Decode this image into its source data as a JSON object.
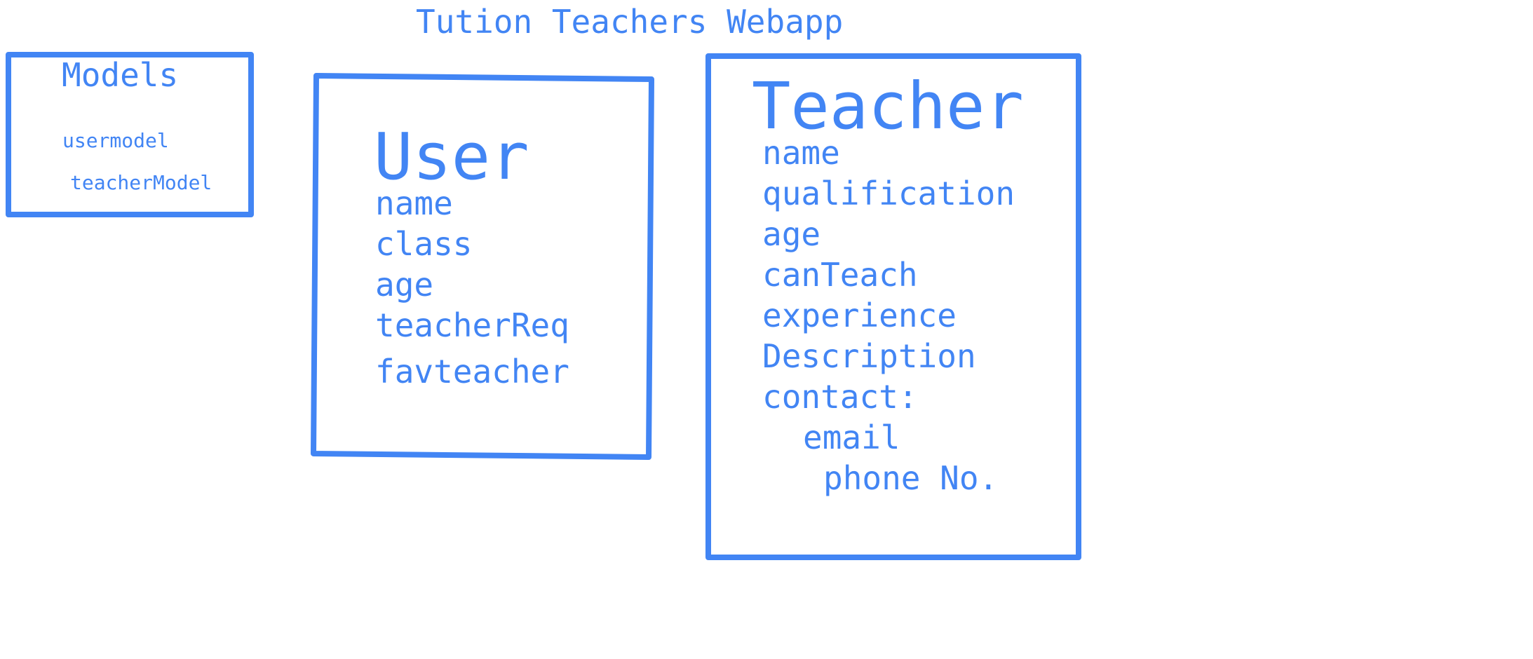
{
  "title": "Tution Teachers Webapp",
  "colors": {
    "ink": "#4285f4",
    "background": "#ffffff"
  },
  "models_box": {
    "title": "Models",
    "items": [
      "usermodel",
      "teacherModel"
    ]
  },
  "user_box": {
    "title": "User",
    "fields": [
      "name",
      "class",
      "age",
      "teacherReq",
      "favteacher"
    ]
  },
  "teacher_box": {
    "title": "Teacher",
    "fields": [
      "name",
      "qualification",
      "age",
      "canTeach",
      "experience",
      "Description",
      "contact:"
    ],
    "contact_fields": [
      "email",
      "phone No."
    ]
  }
}
